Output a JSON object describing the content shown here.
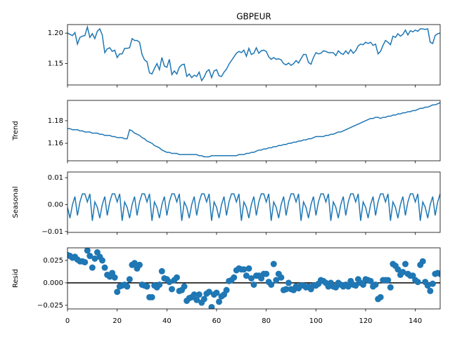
{
  "chart_data": [
    {
      "type": "line",
      "title": "GBPEUR",
      "color": "#1f77b4",
      "xlim": [
        0,
        150
      ],
      "ylim": [
        1.115,
        1.214
      ],
      "yticks": [
        1.15,
        {
          "value": 1.2,
          "label": "1.20"
        }
      ],
      "values": [
        1.2,
        1.198,
        1.196,
        1.201,
        1.182,
        1.193,
        1.195,
        1.196,
        1.21,
        1.193,
        1.199,
        1.191,
        1.203,
        1.207,
        1.197,
        1.168,
        1.174,
        1.176,
        1.17,
        1.172,
        1.16,
        1.166,
        1.166,
        1.175,
        1.175,
        1.176,
        1.191,
        1.188,
        1.188,
        1.185,
        1.165,
        1.156,
        1.153,
        1.135,
        1.133,
        1.142,
        1.15,
        1.14,
        1.16,
        1.146,
        1.144,
        1.157,
        1.132,
        1.138,
        1.133,
        1.144,
        1.148,
        1.149,
        1.129,
        1.133,
        1.127,
        1.131,
        1.129,
        1.136,
        1.122,
        1.128,
        1.137,
        1.14,
        1.127,
        1.138,
        1.14,
        1.13,
        1.129,
        1.136,
        1.141,
        1.149,
        1.155,
        1.161,
        1.167,
        1.17,
        1.168,
        1.172,
        1.162,
        1.175,
        1.165,
        1.167,
        1.176,
        1.167,
        1.171,
        1.172,
        1.17,
        1.161,
        1.157,
        1.16,
        1.157,
        1.158,
        1.156,
        1.15,
        1.148,
        1.151,
        1.147,
        1.15,
        1.155,
        1.151,
        1.158,
        1.165,
        1.165,
        1.152,
        1.149,
        1.16,
        1.168,
        1.166,
        1.167,
        1.171,
        1.17,
        1.168,
        1.168,
        1.168,
        1.163,
        1.171,
        1.167,
        1.165,
        1.171,
        1.166,
        1.173,
        1.167,
        1.171,
        1.179,
        1.182,
        1.181,
        1.185,
        1.183,
        1.185,
        1.18,
        1.182,
        1.166,
        1.17,
        1.18,
        1.188,
        1.185,
        1.181,
        1.195,
        1.193,
        1.199,
        1.195,
        1.198,
        1.205,
        1.197,
        1.204,
        1.202,
        1.205,
        1.203,
        1.207,
        1.207,
        1.206,
        1.207,
        1.185,
        1.183,
        1.196,
        1.199,
        1.2
      ]
    },
    {
      "type": "line",
      "ylabel": "Trend",
      "color": "#1f77b4",
      "xlim": [
        0,
        150
      ],
      "ylim": [
        1.1445,
        1.198
      ],
      "yticks": [
        1.16,
        1.18
      ],
      "values": [
        1.173,
        1.173,
        1.172,
        1.172,
        1.172,
        1.171,
        1.171,
        1.17,
        1.17,
        1.17,
        1.169,
        1.169,
        1.169,
        1.168,
        1.168,
        1.167,
        1.167,
        1.167,
        1.166,
        1.166,
        1.165,
        1.165,
        1.165,
        1.164,
        1.164,
        1.172,
        1.171,
        1.169,
        1.168,
        1.167,
        1.165,
        1.164,
        1.162,
        1.161,
        1.16,
        1.158,
        1.157,
        1.156,
        1.154,
        1.153,
        1.152,
        1.152,
        1.151,
        1.151,
        1.151,
        1.15,
        1.15,
        1.15,
        1.15,
        1.15,
        1.15,
        1.15,
        1.15,
        1.149,
        1.149,
        1.148,
        1.148,
        1.148,
        1.149,
        1.149,
        1.149,
        1.149,
        1.149,
        1.149,
        1.149,
        1.149,
        1.149,
        1.149,
        1.149,
        1.15,
        1.15,
        1.15,
        1.151,
        1.151,
        1.152,
        1.152,
        1.153,
        1.154,
        1.154,
        1.155,
        1.155,
        1.156,
        1.156,
        1.157,
        1.157,
        1.158,
        1.158,
        1.159,
        1.159,
        1.16,
        1.16,
        1.161,
        1.161,
        1.162,
        1.162,
        1.163,
        1.163,
        1.164,
        1.164,
        1.165,
        1.166,
        1.166,
        1.166,
        1.166,
        1.167,
        1.167,
        1.168,
        1.168,
        1.169,
        1.17,
        1.17,
        1.171,
        1.172,
        1.173,
        1.174,
        1.175,
        1.176,
        1.177,
        1.178,
        1.179,
        1.18,
        1.181,
        1.182,
        1.182,
        1.183,
        1.183,
        1.182,
        1.183,
        1.183,
        1.184,
        1.184,
        1.185,
        1.185,
        1.186,
        1.186,
        1.187,
        1.187,
        1.188,
        1.188,
        1.189,
        1.189,
        1.19,
        1.191,
        1.191,
        1.192,
        1.192,
        1.193,
        1.194,
        1.194,
        1.195,
        1.196
      ]
    },
    {
      "type": "line",
      "ylabel": "Seasonal",
      "color": "#1f77b4",
      "xlim": [
        0,
        150
      ],
      "ylim": [
        -0.0103,
        0.0121
      ],
      "yticks": [
        {
          "value": -0.01,
          "label": "−0.01"
        },
        {
          "value": 0,
          "label": "0.00"
        },
        0.01
      ],
      "values": [
        -0.001,
        -0.005,
        0.0,
        0.003,
        -0.004,
        0.001,
        0.004,
        0.004,
        0.001,
        0.004,
        -0.006,
        0.001,
        -0.001,
        -0.005,
        0.0,
        0.003,
        -0.004,
        0.001,
        0.004,
        0.004,
        0.001,
        0.004,
        -0.006,
        0.001,
        -0.001,
        -0.005,
        0.0,
        0.003,
        -0.004,
        0.001,
        0.004,
        0.004,
        0.001,
        0.004,
        -0.006,
        0.001,
        -0.001,
        -0.005,
        0.0,
        0.003,
        -0.004,
        0.001,
        0.004,
        0.004,
        0.001,
        0.004,
        -0.006,
        0.001,
        -0.001,
        -0.005,
        0.0,
        0.003,
        -0.004,
        0.001,
        0.004,
        0.004,
        0.001,
        0.004,
        -0.006,
        0.001,
        -0.001,
        -0.005,
        0.0,
        0.003,
        -0.004,
        0.001,
        0.004,
        0.004,
        0.001,
        0.004,
        -0.006,
        0.001,
        -0.001,
        -0.005,
        0.0,
        0.003,
        -0.004,
        0.001,
        0.004,
        0.004,
        0.001,
        0.004,
        -0.006,
        0.001,
        -0.001,
        -0.005,
        0.0,
        0.003,
        -0.004,
        0.001,
        0.004,
        0.004,
        0.001,
        0.004,
        -0.006,
        0.001,
        -0.001,
        -0.005,
        0.0,
        0.003,
        -0.004,
        0.001,
        0.004,
        0.004,
        0.001,
        0.004,
        -0.006,
        0.001,
        -0.001,
        -0.005,
        0.0,
        0.003,
        -0.004,
        0.001,
        0.004,
        0.004,
        0.001,
        0.004,
        -0.006,
        0.001,
        -0.001,
        -0.005,
        0.0,
        0.003,
        -0.004,
        0.001,
        0.004,
        0.004,
        0.001,
        0.004,
        -0.006,
        0.001,
        -0.001,
        -0.005,
        0.0,
        0.003,
        -0.004,
        0.001,
        0.004,
        0.004,
        0.001,
        0.004,
        -0.006,
        0.001,
        -0.001,
        -0.005,
        0.0,
        0.003,
        -0.004,
        0.001,
        0.004
      ]
    },
    {
      "type": "scatter",
      "ylabel": "Resid",
      "color": "#1f77b4",
      "hline": 0,
      "xlim": [
        0,
        150
      ],
      "ylim": [
        -0.029,
        0.039
      ],
      "xticks": [
        0,
        20,
        40,
        60,
        80,
        100,
        120,
        140
      ],
      "yticks": [
        {
          "value": -0.025,
          "label": "−0.025"
        },
        {
          "value": 0,
          "label": "0.000"
        },
        0.025
      ],
      "values": [
        0.031,
        0.03,
        0.028,
        0.029,
        0.026,
        0.024,
        0.024,
        0.023,
        0.036,
        0.03,
        0.017,
        0.027,
        0.034,
        0.029,
        0.025,
        0.017,
        0.009,
        0.007,
        0.011,
        0.006,
        -0.01,
        -0.004,
        -0.003,
        -0.002,
        -0.004,
        0.004,
        0.02,
        0.022,
        0.016,
        0.02,
        -0.002,
        -0.003,
        -0.004,
        -0.016,
        -0.016,
        -0.003,
        -0.005,
        -0.002,
        0.013,
        0.005,
        0.004,
        0.001,
        -0.007,
        0.003,
        0.006,
        -0.009,
        -0.008,
        -0.004,
        -0.02,
        -0.017,
        -0.016,
        -0.013,
        -0.019,
        -0.013,
        -0.022,
        -0.018,
        -0.012,
        -0.01,
        -0.027,
        -0.013,
        -0.011,
        -0.021,
        -0.015,
        -0.013,
        -0.008,
        0.002,
        0.003,
        0.006,
        0.014,
        0.016,
        0.015,
        0.015,
        0.008,
        0.016,
        0.005,
        -0.002,
        0.008,
        0.008,
        0.005,
        0.01,
        0.01,
        0.001,
        -0.002,
        0.021,
        0.003,
        0.01,
        0.006,
        -0.008,
        -0.007,
        0.0,
        -0.007,
        -0.008,
        -0.004,
        -0.006,
        -0.003,
        -0.003,
        -0.005,
        -0.004,
        -0.007,
        -0.003,
        -0.003,
        -0.001,
        0.003,
        0.002,
        0.0,
        -0.004,
        0.0,
        -0.004,
        -0.005,
        0.0,
        -0.002,
        -0.004,
        -0.002,
        -0.004,
        0.002,
        -0.002,
        -0.003,
        0.004,
        0.0,
        -0.002,
        0.004,
        0.003,
        0.002,
        -0.004,
        -0.002,
        -0.018,
        -0.016,
        0.003,
        0.003,
        0.003,
        -0.005,
        0.021,
        0.019,
        0.015,
        0.009,
        0.012,
        0.021,
        0.01,
        0.008,
        0.008,
        0.003,
        0.001,
        0.02,
        0.024,
        0.001,
        -0.003,
        -0.009,
        -0.001,
        0.01,
        0.011,
        0.01
      ]
    }
  ]
}
